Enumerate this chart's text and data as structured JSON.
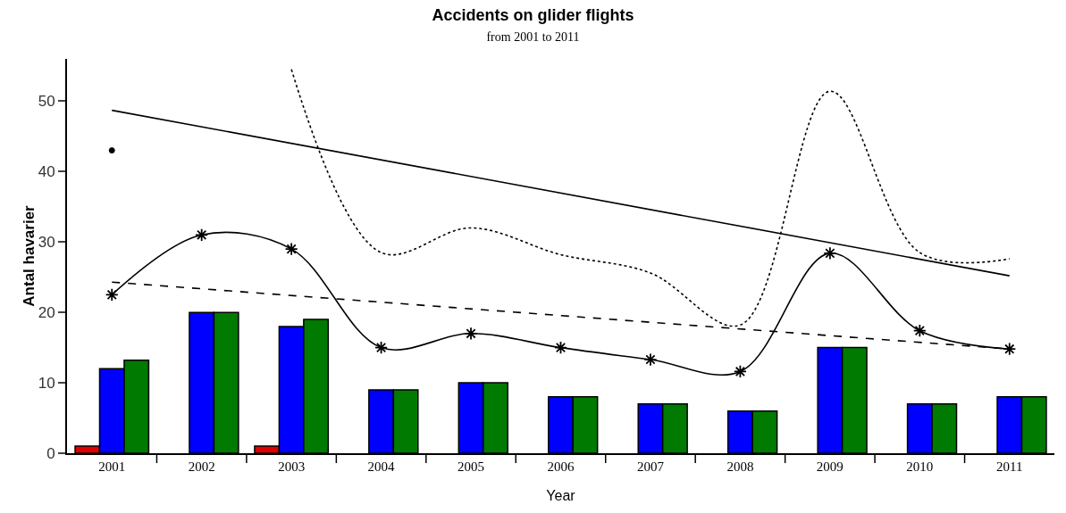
{
  "chart_data": {
    "type": "bar",
    "title": "Accidents on glider flights",
    "subtitle": "from 2001 to 2011",
    "xlabel": "Year",
    "ylabel": "Antal havarier",
    "categories": [
      "2001",
      "2002",
      "2003",
      "2004",
      "2005",
      "2006",
      "2007",
      "2008",
      "2009",
      "2010",
      "2011"
    ],
    "series": [
      {
        "color": "#e00000",
        "values": [
          1,
          null,
          1,
          null,
          null,
          null,
          null,
          null,
          null,
          null,
          null
        ]
      },
      {
        "color": "#0000ff",
        "values": [
          12,
          20,
          18,
          9,
          10,
          8,
          7,
          6,
          15,
          7,
          8
        ]
      },
      {
        "color": "#007a00",
        "values": [
          13.2,
          20,
          19,
          9,
          10,
          8,
          7,
          6,
          15,
          7,
          8
        ]
      },
      {
        "type": "line",
        "color": "#000000",
        "marker": "cross",
        "line_style": "solid",
        "values": [
          22.5,
          31,
          29,
          15,
          17,
          15,
          13.3,
          11.6,
          28.4,
          17.4,
          14.8
        ]
      },
      {
        "type": "line",
        "color": "#000000",
        "marker": "none",
        "line_style": "dotted",
        "values": [
          43,
          null,
          54.5,
          28.5,
          32,
          28.2,
          25.6,
          18.2,
          51.4,
          28.5,
          27.6
        ]
      },
      {
        "type": "line",
        "color": "#000000",
        "line_style": "solid",
        "values": [
          48.7,
          null,
          null,
          null,
          null,
          null,
          null,
          null,
          null,
          null,
          25.2
        ]
      },
      {
        "type": "line",
        "color": "#000000",
        "line_style": "dashed",
        "values": [
          24.3,
          null,
          null,
          null,
          null,
          null,
          null,
          null,
          null,
          null,
          14.8
        ]
      }
    ],
    "ylim": [
      0,
      56
    ],
    "yticks": [
      0,
      10,
      20,
      30,
      40,
      50
    ],
    "grid": false
  }
}
